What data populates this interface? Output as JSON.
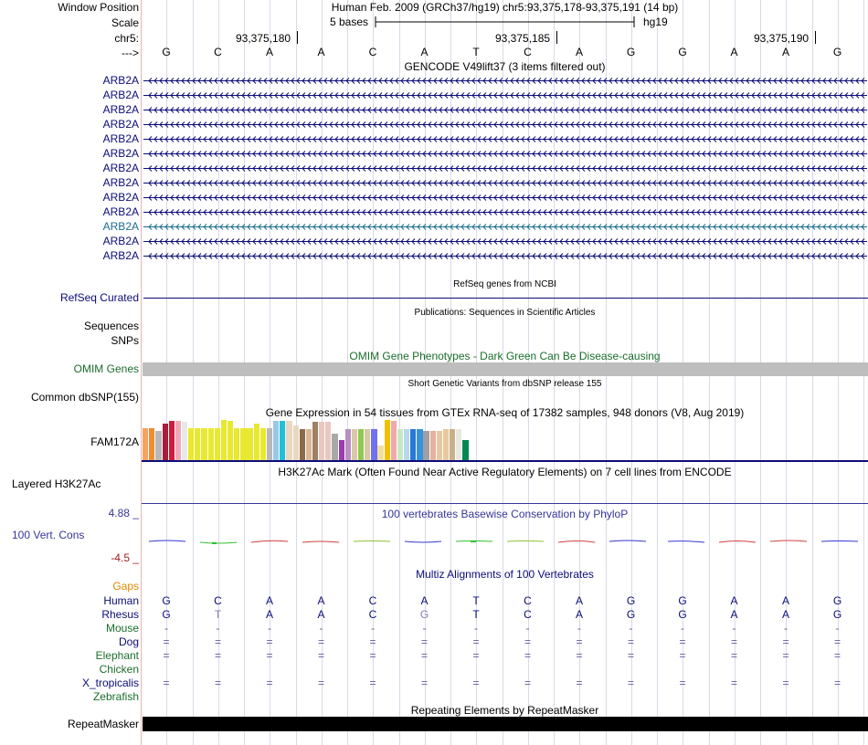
{
  "header": {
    "window_position_label": "Window Position",
    "scale_label": "Scale",
    "chrom_label": "chr5:",
    "strand_label": "--->",
    "assembly_title": "Human Feb. 2009 (GRCh37/hg19)   chr5:93,375,178-93,375,191 (14 bp)",
    "scale_text": "5 bases",
    "db_text": "hg19",
    "ruler_ticks": [
      "93,375,180",
      "93,375,185",
      "93,375,190"
    ],
    "sequence": [
      "G",
      "C",
      "A",
      "A",
      "C",
      "A",
      "T",
      "C",
      "A",
      "G",
      "G",
      "A",
      "A",
      "G"
    ]
  },
  "gencode": {
    "title": "GENCODE V49lift37 (3 items filtered out)",
    "genes": [
      "ARB2A",
      "ARB2A",
      "ARB2A",
      "ARB2A",
      "ARB2A",
      "ARB2A",
      "ARB2A",
      "ARB2A",
      "ARB2A",
      "ARB2A",
      "ARB2A",
      "ARB2A",
      "ARB2A"
    ]
  },
  "refseq": {
    "title": "RefSeq genes from NCBI",
    "label": "RefSeq Curated"
  },
  "publications": {
    "title": "Publications: Sequences in Scientific Articles",
    "label1": "Sequences",
    "label2": "SNPs"
  },
  "omim": {
    "title": "OMIM Gene Phenotypes - Dark Green Can Be Disease-causing",
    "label": "OMIM Genes"
  },
  "dbsnp": {
    "title": "Short Genetic Variants from dbSNP release 155",
    "label": "Common dbSNP(155)"
  },
  "gtex": {
    "title": "Gene Expression in 54 tissues from GTEx RNA-seq of 17382 samples, 948 donors (V8, Aug 2019)",
    "label": "FAM172A",
    "bar_heights": [
      0.79,
      0.79,
      0.72,
      0.92,
      0.97,
      0.97,
      0.95,
      0.79,
      0.79,
      0.79,
      0.79,
      0.79,
      1.0,
      0.97,
      0.79,
      0.79,
      0.79,
      0.92,
      0.79,
      0.79,
      0.97,
      0.97,
      0.97,
      0.86,
      0.77,
      0.77,
      0.95,
      0.95,
      0.95,
      0.65,
      0.51,
      0.77,
      0.77,
      0.77,
      0.77,
      0.77,
      0.36,
      1.0,
      0.97,
      0.77,
      0.77,
      0.77,
      0.77,
      0.72,
      0.72,
      0.72,
      0.77,
      0.77,
      0.77,
      0.51,
      0.0,
      0.0,
      0.0,
      0.0
    ],
    "bar_colors": [
      "#f4a460",
      "#f08c33",
      "#b8b8b8",
      "#a81c3c",
      "#d01c3c",
      "#f0a8b8",
      "#e8e8e8",
      "#e8e830",
      "#e8e830",
      "#e8e830",
      "#e8e830",
      "#e8e830",
      "#e8e830",
      "#e8e830",
      "#e8e830",
      "#e8e830",
      "#e8e830",
      "#e8e830",
      "#e8e830",
      "#b8b8b8",
      "#98c8e8",
      "#20c0d8",
      "#e8d8c0",
      "#e8d8c0",
      "#8c6a48",
      "#d8b898",
      "#a08060",
      "#e8c8c0",
      "#e8c8c0",
      "#a8a8a8",
      "#9c3cac",
      "#b890c0",
      "#d8c8a8",
      "#90c850",
      "#d8c8a8",
      "#7070f0",
      "#f0e0a0",
      "#f0c000",
      "#f0a8a8",
      "#c8e8c0",
      "#b8d8f0",
      "#2878d8",
      "#3890e0",
      "#a0a0a0",
      "#e8b0a0",
      "#e8c8a0",
      "#e8c8a0",
      "#c8b088",
      "#e8e8e0",
      "#008850",
      "#f0f0f0",
      "#ff00d8",
      "#ffffff",
      "#ffffff"
    ]
  },
  "h3k27ac": {
    "title": "H3K27Ac Mark (Often Found Near Active Regulatory Elements) on 7 cell lines from ENCODE",
    "label": "Layered H3K27Ac"
  },
  "phylop": {
    "title": "100 vertebrates Basewise Conservation by PhyloP",
    "label": "100 Vert. Cons",
    "max_label": "4.88 _",
    "min_label": "-4.5 _"
  },
  "multiz": {
    "title": "Multiz Alignments of 100 Vertebrates",
    "gaps_label": "Gaps",
    "species": [
      {
        "name": "Human",
        "color": "#0c0c78"
      },
      {
        "name": "Rhesus",
        "color": "#0c0c78"
      },
      {
        "name": "Mouse",
        "color": "#1a6e2a"
      },
      {
        "name": "Dog",
        "color": "#0c0c78"
      },
      {
        "name": "Elephant",
        "color": "#1a6e2a"
      },
      {
        "name": "Chicken",
        "color": "#1a6e2a"
      },
      {
        "name": "X_tropicalis",
        "color": "#0c0c78"
      },
      {
        "name": "Zebrafish",
        "color": "#1a6e2a"
      }
    ],
    "rows": [
      [
        "G",
        "C",
        "A",
        "A",
        "C",
        "A",
        "T",
        "C",
        "A",
        "G",
        "G",
        "A",
        "A",
        "G"
      ],
      [
        "G",
        "T",
        "A",
        "A",
        "C",
        "G",
        "T",
        "C",
        "A",
        "G",
        "G",
        "A",
        "A",
        "G"
      ],
      [
        "-",
        "-",
        "-",
        "-",
        "-",
        "-",
        "-",
        "-",
        "-",
        "-",
        "-",
        "-",
        "-",
        "-"
      ],
      [
        "=",
        "=",
        "=",
        "=",
        "=",
        "=",
        "=",
        "=",
        "=",
        "=",
        "=",
        "=",
        "=",
        "="
      ],
      [
        "=",
        "=",
        "=",
        "=",
        "=",
        "=",
        "=",
        "=",
        "=",
        "=",
        "=",
        "=",
        "=",
        "="
      ],
      [
        "",
        "",
        "",
        "",
        "",
        "",
        "",
        "",
        "",
        "",
        "",
        "",
        "",
        ""
      ],
      [
        "=",
        "=",
        "=",
        "=",
        "=",
        "=",
        "=",
        "=",
        "=",
        "=",
        "=",
        "=",
        "=",
        "="
      ],
      [
        "",
        "",
        "",
        "",
        "",
        "",
        "",
        "",
        "",
        "",
        "",
        "",
        "",
        ""
      ]
    ]
  },
  "repeatmasker": {
    "title": "Repeating Elements by RepeatMasker",
    "label": "RepeatMasker"
  },
  "colors": {
    "label_blue": "#0c0c78",
    "label_green": "#1a6e2a",
    "conservation_blue": "#36369a",
    "gaps_orange": "#e08800",
    "min_red": "#a02020"
  }
}
